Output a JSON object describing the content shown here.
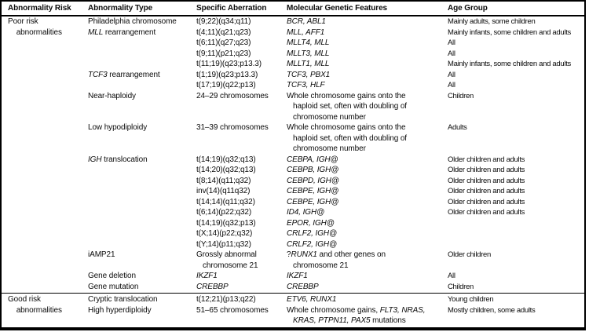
{
  "colors": {
    "background": "#ffffff",
    "text": "#0a0a0a",
    "border": "#000000"
  },
  "table": {
    "italic_marker": "*",
    "headers": [
      "Abnormality Risk",
      "Abnormality Type",
      "Specific Aberration",
      "Molecular Genetic Features",
      "Age Group"
    ],
    "lines": [
      {
        "cells": [
          "Poor risk",
          "Philadelphia chromosome",
          "t(9;22)(q34;q11)",
          "*BCR, ABL1*",
          "Mainly adults, some children"
        ]
      },
      {
        "cells": [
          "    abnormalities",
          "*MLL* rearrangement",
          "t(4;11)(q21;q23)",
          "*MLL, AFF1*",
          "Mainly infants, some children and adults"
        ]
      },
      {
        "cells": [
          "",
          "",
          "t(6;11)(q27;q23)",
          "*MLLT4, MLL*",
          "All"
        ]
      },
      {
        "cells": [
          "",
          "",
          "t(9;11)(p21;q23)",
          "*MLLT3, MLL*",
          "All"
        ]
      },
      {
        "cells": [
          "",
          "",
          "t(11;19)(q23;p13.3)",
          "*MLLT1, MLL*",
          "Mainly infants, some children and adults"
        ]
      },
      {
        "cells": [
          "",
          "*TCF3* rearrangement",
          "t(1;19)(q23;p13.3)",
          "*TCF3, PBX1*",
          "All"
        ]
      },
      {
        "cells": [
          "",
          "",
          "t(17;19)(q22;p13)",
          "*TCF3, HLF*",
          "All"
        ]
      },
      {
        "cells": [
          "",
          "Near-haploidy",
          "24–29 chromosomes",
          "Whole chromosome gains onto the",
          "Children"
        ]
      },
      {
        "cells": [
          "",
          "",
          "",
          "   haploid set, often with doubling of",
          ""
        ]
      },
      {
        "cells": [
          "",
          "",
          "",
          "   chromosome number",
          ""
        ]
      },
      {
        "cells": [
          "",
          "Low hypodiploidy",
          "31–39 chromosomes",
          "Whole chromosome gains onto the",
          "Adults"
        ]
      },
      {
        "cells": [
          "",
          "",
          "",
          "   haploid set, often with doubling of",
          ""
        ]
      },
      {
        "cells": [
          "",
          "",
          "",
          "   chromosome number",
          ""
        ]
      },
      {
        "cells": [
          "",
          "*IGH* translocation",
          "t(14;19)(q32;q13)",
          "*CEBPA, IGH@*",
          "Older children and adults"
        ]
      },
      {
        "cells": [
          "",
          "",
          "t(14;20)(q32;q13)",
          "*CEBPB, IGH@*",
          "Older children and adults"
        ]
      },
      {
        "cells": [
          "",
          "",
          "t(8;14)(q11;q32)",
          "*CEBPD, IGH@*",
          "Older children and adults"
        ]
      },
      {
        "cells": [
          "",
          "",
          "inv(14)(q11q32)",
          "*CEBPE, IGH@*",
          "Older children and adults"
        ]
      },
      {
        "cells": [
          "",
          "",
          "t(14;14)(q11;q32)",
          "*CEBPE, IGH@*",
          "Older children and adults"
        ]
      },
      {
        "cells": [
          "",
          "",
          "t(6;14)(p22;q32)",
          "*ID4, IGH@*",
          "Older children and adults"
        ]
      },
      {
        "cells": [
          "",
          "",
          "t(14;19)(q32;p13)",
          "*EPOR, IGH@*",
          ""
        ]
      },
      {
        "cells": [
          "",
          "",
          "t(X;14)(p22;q32)",
          "*CRLF2, IGH@*",
          ""
        ]
      },
      {
        "cells": [
          "",
          "",
          "t(Y;14)(p11;q32)",
          "*CRLF2, IGH@*",
          ""
        ]
      },
      {
        "cells": [
          "",
          "iAMP21",
          "Grossly abnormal",
          "?*RUNX1* and other genes on",
          "Older children"
        ]
      },
      {
        "cells": [
          "",
          "",
          "   chromosome 21",
          "   chromosome 21",
          ""
        ]
      },
      {
        "cells": [
          "",
          "Gene deletion",
          "*IKZF1*",
          "*IKZF1*",
          "All"
        ]
      },
      {
        "cells": [
          "",
          "Gene mutation",
          "*CREBBP*",
          "*CREBBP*",
          "Children"
        ]
      },
      {
        "rule_before": true,
        "cells": [
          "Good risk",
          "Cryptic translocation",
          "t(12;21)(p13;q22)",
          "*ETV6, RUNX1*",
          "Young children"
        ]
      },
      {
        "cells": [
          "    abnormalities",
          "High hyperdiploidy",
          "51–65 chromosomes",
          "Whole chromosome gains, *FLT3, NRAS,*",
          "Mostly children, some adults"
        ]
      },
      {
        "cells": [
          "",
          "",
          "",
          "   *KRAS, PTPN11, PAX5* mutations",
          ""
        ]
      }
    ]
  }
}
